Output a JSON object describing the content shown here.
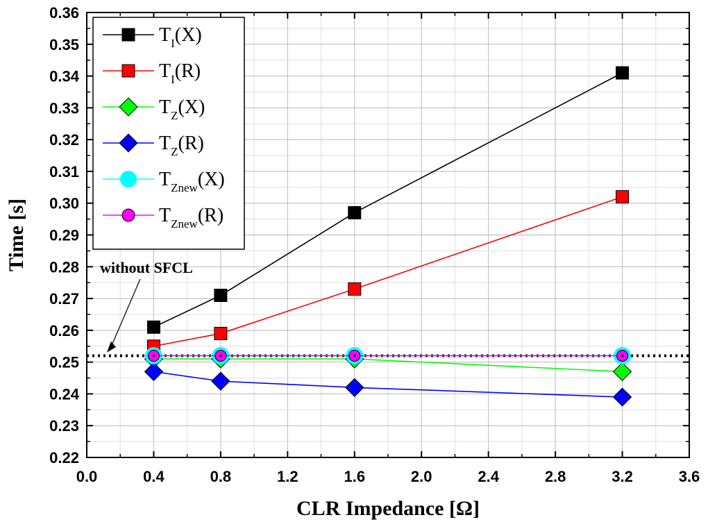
{
  "chart_data": {
    "type": "line",
    "xlabel": "CLR Impedance [Ω]",
    "ylabel": "Time [s]",
    "xlim": [
      0.0,
      3.6
    ],
    "ylim": [
      0.22,
      0.36
    ],
    "xticks": [
      "0.0",
      "0.4",
      "0.8",
      "1.2",
      "1.6",
      "2.0",
      "2.4",
      "2.8",
      "3.2",
      "3.6"
    ],
    "yticks": [
      "0.22",
      "0.23",
      "0.24",
      "0.25",
      "0.26",
      "0.27",
      "0.28",
      "0.29",
      "0.30",
      "0.31",
      "0.32",
      "0.33",
      "0.34",
      "0.35",
      "0.36"
    ],
    "grid": true,
    "legend_position": "top-left",
    "x": [
      0.4,
      0.8,
      1.6,
      3.2
    ],
    "series": [
      {
        "name": "T_I(X)",
        "base": "T",
        "sub": "I",
        "suffix": "(X)",
        "color": "#000000",
        "marker": "square",
        "values": [
          0.261,
          0.271,
          0.297,
          0.341
        ]
      },
      {
        "name": "T_I(R)",
        "base": "T",
        "sub": "I",
        "suffix": "(R)",
        "color": "#ff0000",
        "marker": "square",
        "values": [
          0.255,
          0.259,
          0.273,
          0.302
        ]
      },
      {
        "name": "T_Z(X)",
        "base": "T",
        "sub": "Z",
        "suffix": "(X)",
        "color": "#00ff00",
        "marker": "diamond",
        "values": [
          0.251,
          0.251,
          0.251,
          0.247
        ]
      },
      {
        "name": "T_Z(R)",
        "base": "T",
        "sub": "Z",
        "suffix": "(R)",
        "color": "#0000ff",
        "marker": "diamond",
        "values": [
          0.247,
          0.244,
          0.242,
          0.239
        ]
      },
      {
        "name": "T_Znew(X)",
        "base": "T",
        "sub": "Znew",
        "suffix": "(X)",
        "color": "#00ffff",
        "marker": "circle",
        "values": [
          0.252,
          0.252,
          0.252,
          0.252
        ]
      },
      {
        "name": "T_Znew(R)",
        "base": "T",
        "sub": "Znew",
        "suffix": "(R)",
        "color": "#ff00ff",
        "marker": "circle",
        "values": [
          0.252,
          0.252,
          0.252,
          0.252
        ]
      }
    ],
    "reference_line": {
      "value": 0.252,
      "style": "dotted",
      "color": "#000000"
    },
    "annotations": [
      {
        "text": "without SFCL",
        "points_to": [
          0.12,
          0.253
        ]
      }
    ]
  }
}
